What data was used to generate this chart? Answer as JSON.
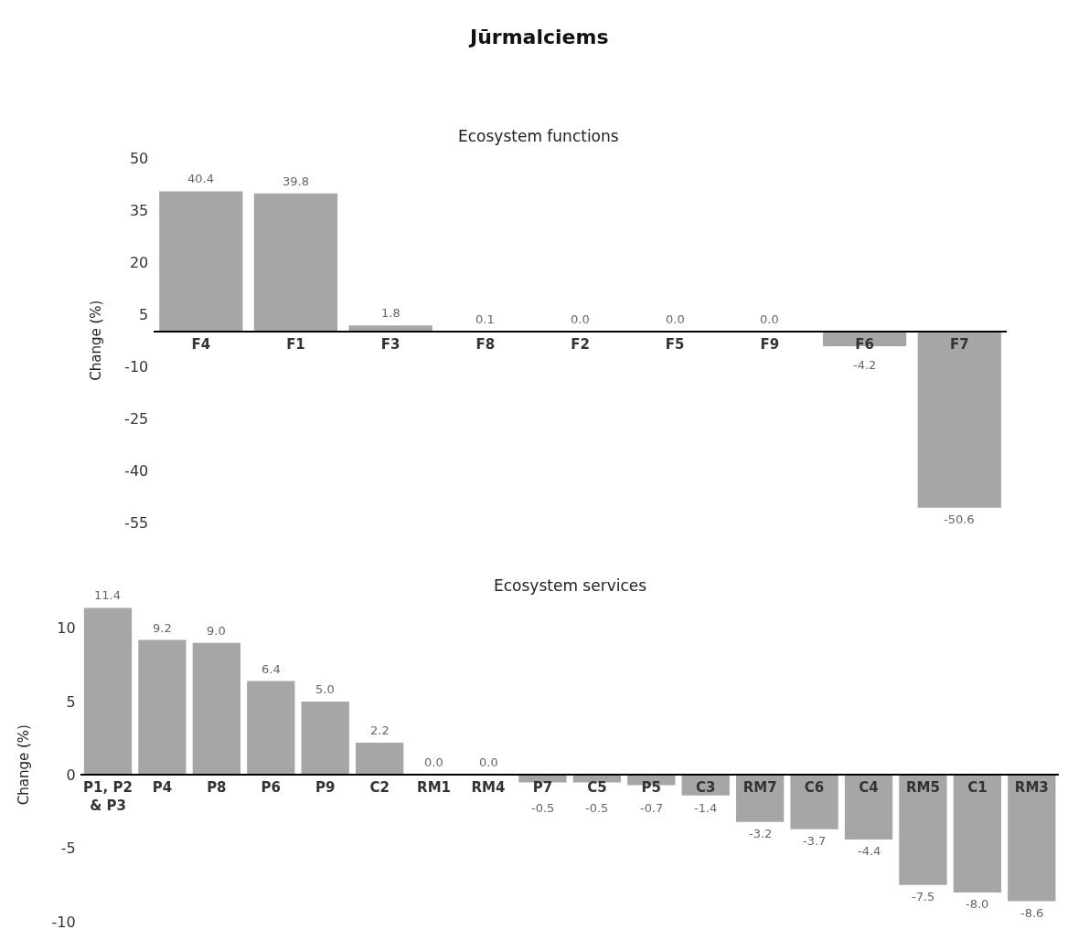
{
  "chart_data": [
    {
      "type": "bar",
      "title": "Jūrmalciems",
      "subtitle": "Ecosystem functions",
      "ylabel": "Change (%)",
      "categories": [
        "F4",
        "F1",
        "F3",
        "F8",
        "F2",
        "F5",
        "F9",
        "F6",
        "F7"
      ],
      "values": [
        40.4,
        39.8,
        1.8,
        0.1,
        0.0,
        0.0,
        0.0,
        -4.2,
        -50.6
      ],
      "color": "#a6a6a6",
      "ylim": [
        -55,
        50
      ],
      "yticks": [
        50,
        35,
        20,
        5,
        -10,
        -25,
        -40,
        -55
      ],
      "value_labels": [
        "40.4",
        "39.8",
        "1.8",
        "0.1",
        "0.0",
        "0.0",
        "0.0",
        "-4.2",
        "-50.6"
      ]
    },
    {
      "type": "bar",
      "title": "Ecosystem services",
      "ylabel": "Change (%)",
      "categories": [
        "P1, P2\n& P3",
        "P4",
        "P8",
        "P6",
        "P9",
        "C2",
        "RM1",
        "RM4",
        "P7",
        "C5",
        "P5",
        "C3",
        "RM7",
        "C6",
        "C4",
        "RM5",
        "C1",
        "RM3"
      ],
      "values": [
        11.4,
        9.2,
        9.0,
        6.4,
        5.0,
        2.2,
        0.0,
        0.0,
        -0.5,
        -0.5,
        -0.7,
        -1.4,
        -3.2,
        -3.7,
        -4.4,
        -7.5,
        -8.0,
        -8.6
      ],
      "color": "#a6a6a6",
      "ylim": [
        -10,
        11.4
      ],
      "yticks": [
        10,
        5,
        0,
        -5,
        -10
      ],
      "value_labels": [
        "11.4",
        "9.2",
        "9.0",
        "6.4",
        "5.0",
        "2.2",
        "0.0",
        "0.0",
        "-0.5",
        "-0.5",
        "-0.7",
        "-1.4",
        "-3.2",
        "-3.7",
        "-4.4",
        "-7.5",
        "-8.0",
        "-8.6"
      ]
    }
  ]
}
